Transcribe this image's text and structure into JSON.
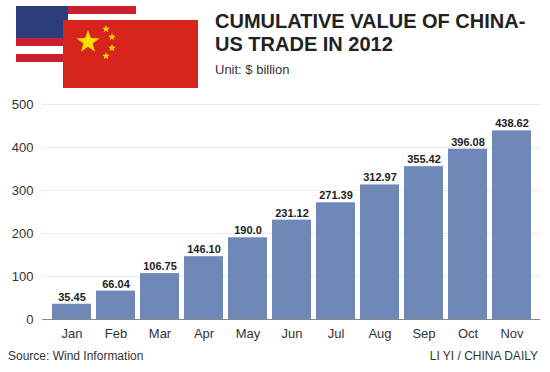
{
  "chart_data": {
    "type": "bar",
    "title": "CUMULATIVE VALUE OF CHINA-US TRADE IN 2012",
    "subtitle": "Unit: $ billion",
    "source": "Source: Wind Information",
    "credit": "LI YI / CHINA DAILY",
    "categories": [
      "Jan",
      "Feb",
      "Mar",
      "Apr",
      "May",
      "Jun",
      "Jul",
      "Aug",
      "Sep",
      "Oct",
      "Nov"
    ],
    "values": [
      35.45,
      66.04,
      106.75,
      146.1,
      190,
      231.12,
      271.39,
      312.97,
      355.42,
      396.08,
      438.62
    ],
    "value_labels": [
      "35.45",
      "66.04",
      "106.75",
      "146.10",
      "190.0",
      "231.12",
      "271.39",
      "312.97",
      "355.42",
      "396.08",
      "438.62"
    ],
    "color": "#6f88b8",
    "ylim": [
      0,
      500
    ],
    "yticks": [
      0,
      100,
      200,
      300,
      400,
      500
    ],
    "grid": true,
    "data_labels": true
  }
}
